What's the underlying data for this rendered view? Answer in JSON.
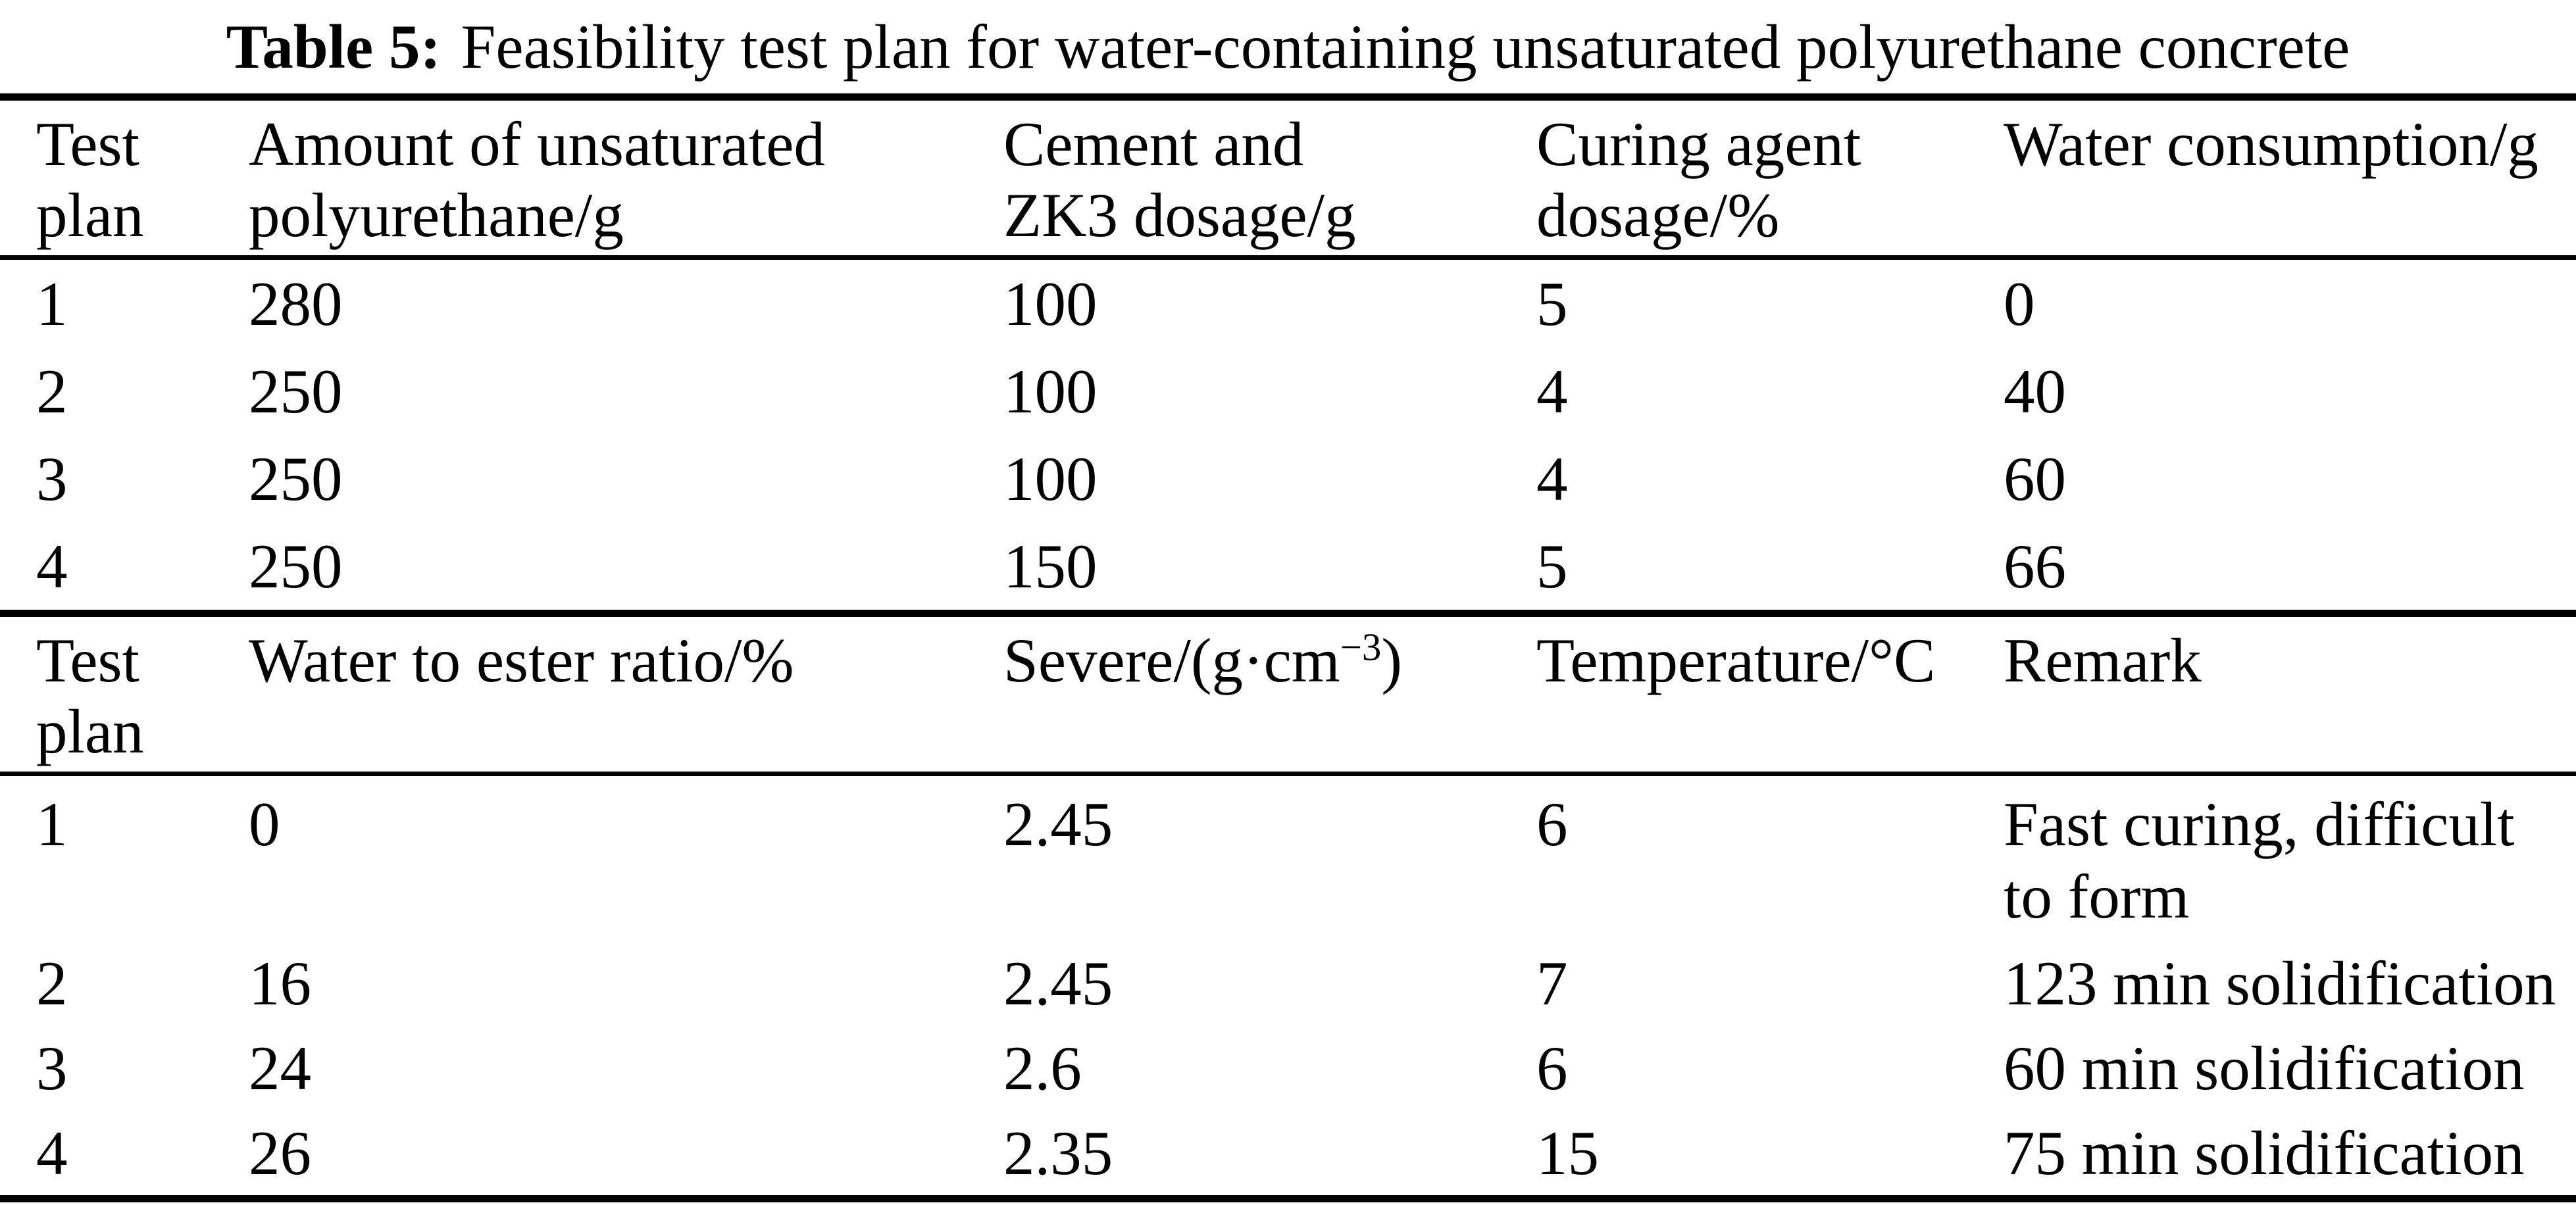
{
  "title": {
    "label": "Table 5:",
    "text": "Feasibility test plan for water-containing unsaturated polyurethane concrete"
  },
  "section1": {
    "headers": {
      "col1": {
        "line1": "Test",
        "line2": "plan"
      },
      "col2": {
        "line1": "Amount of unsaturated",
        "line2": "polyurethane/g"
      },
      "col3": {
        "line1": "Cement and",
        "line2": "ZK3 dosage/g"
      },
      "col4": {
        "line1": "Curing agent",
        "line2": "dosage/%"
      },
      "col5": {
        "line1": "Water consumption/g",
        "line2": ""
      }
    },
    "rows": [
      {
        "plan": "1",
        "amount": "280",
        "cement": "100",
        "curing": "5",
        "water": "0"
      },
      {
        "plan": "2",
        "amount": "250",
        "cement": "100",
        "curing": "4",
        "water": "40"
      },
      {
        "plan": "3",
        "amount": "250",
        "cement": "100",
        "curing": "4",
        "water": "60"
      },
      {
        "plan": "4",
        "amount": "250",
        "cement": "150",
        "curing": "5",
        "water": "66"
      }
    ]
  },
  "section2": {
    "headers": {
      "col1": {
        "line1": "Test",
        "line2": "plan"
      },
      "col2": {
        "line1": "Water to ester ratio/%",
        "line2": ""
      },
      "col3": {
        "base": "Severe/(g·cm",
        "sup": "−3",
        "close": ")"
      },
      "col4": {
        "line1": "Temperature/°C",
        "line2": ""
      },
      "col5": {
        "line1": "Remark",
        "line2": ""
      }
    },
    "rows": [
      {
        "plan": "1",
        "ratio": "0",
        "severe": "2.45",
        "temperature": "6",
        "remark": "Fast curing, difficult to form"
      },
      {
        "plan": "2",
        "ratio": "16",
        "severe": "2.45",
        "temperature": "7",
        "remark": "123 min solidification"
      },
      {
        "plan": "3",
        "ratio": "24",
        "severe": "2.6",
        "temperature": "6",
        "remark": "60 min solidification"
      },
      {
        "plan": "4",
        "ratio": "26",
        "severe": "2.35",
        "temperature": "15",
        "remark": "75 min solidification"
      }
    ]
  }
}
